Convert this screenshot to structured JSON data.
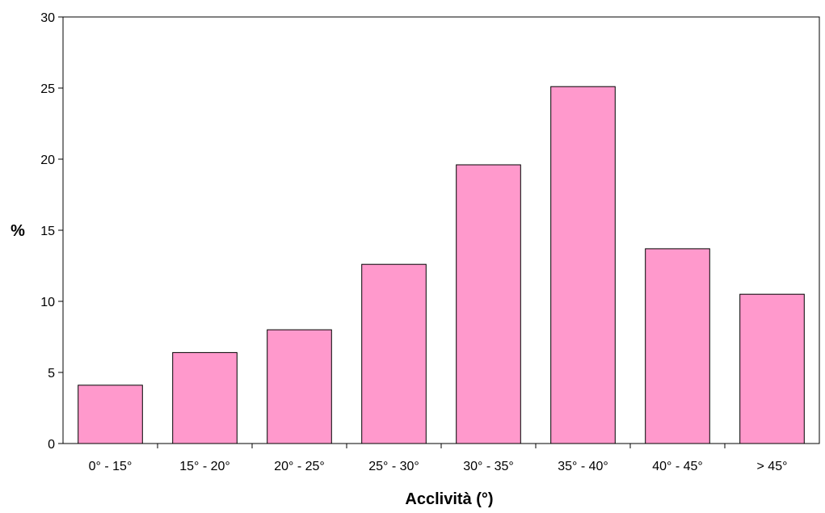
{
  "chart_data": {
    "type": "bar",
    "categories": [
      "0° - 15°",
      "15° - 20°",
      "20° - 25°",
      "25° - 30°",
      "30° - 35°",
      "35° - 40°",
      "40° - 45°",
      "> 45°"
    ],
    "values": [
      4.1,
      6.4,
      8.0,
      12.6,
      19.6,
      25.1,
      13.7,
      10.5
    ],
    "title": "",
    "xlabel": "Acclività (°)",
    "ylabel": "%",
    "ylim": [
      0,
      30
    ],
    "yticks": [
      0,
      5,
      10,
      15,
      20,
      25,
      30
    ],
    "grid": false,
    "legend": "none",
    "colors": {
      "bar_fill": "#ff99cc",
      "bar_stroke": "#000000",
      "frame": "#000000"
    }
  }
}
